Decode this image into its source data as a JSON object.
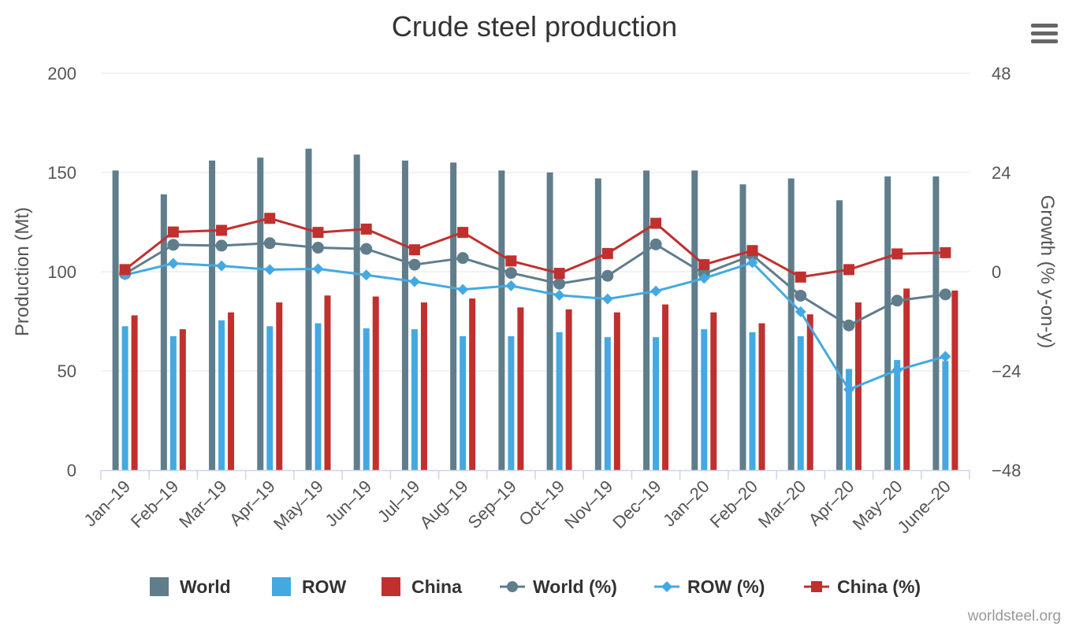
{
  "chart_data": {
    "type": "bar",
    "title": "Crude steel production",
    "categories": [
      "Jan-19",
      "Feb-19",
      "Mar-19",
      "Apr-19",
      "May-19",
      "Jun-19",
      "Jul-19",
      "Aug-19",
      "Sep-19",
      "Oct-19",
      "Nov-19",
      "Dec-19",
      "Jan-20",
      "Feb-20",
      "Mar-20",
      "Apr-20",
      "May-20",
      "June-20"
    ],
    "y_left": {
      "label": "Production (Mt)",
      "ylim": [
        0,
        200
      ],
      "ticks": [
        0,
        50,
        100,
        150,
        200
      ]
    },
    "y_right": {
      "label": "Growth (% y-on-y)",
      "ylim": [
        -48,
        48
      ],
      "ticks": [
        -48,
        -24,
        0,
        24,
        48
      ]
    },
    "series": [
      {
        "name": "World",
        "kind": "bar",
        "axis": "left",
        "color": "#607d8b",
        "values": [
          151,
          139,
          156,
          157.5,
          162,
          159,
          156,
          155,
          151,
          150,
          147,
          151,
          151,
          144,
          147,
          136,
          148,
          148
        ]
      },
      {
        "name": "ROW",
        "kind": "bar",
        "axis": "left",
        "color": "#45a9e1",
        "values": [
          72.5,
          67.5,
          75.5,
          72.5,
          74,
          71.5,
          71,
          67.5,
          67.5,
          69.5,
          67,
          67,
          71,
          69.5,
          67.5,
          51,
          55.5,
          55
        ]
      },
      {
        "name": "China",
        "kind": "bar",
        "axis": "left",
        "color": "#c0302f",
        "values": [
          78,
          71,
          79.5,
          84.5,
          88,
          87.5,
          84.5,
          86.5,
          82,
          81,
          79.5,
          83.5,
          79.5,
          74,
          78.5,
          84.5,
          91.5,
          90.5
        ]
      },
      {
        "name": "World (%)",
        "kind": "line",
        "axis": "right",
        "marker": "circle",
        "color": "#607d8b",
        "values": [
          -0.5,
          6.5,
          6.3,
          6.9,
          5.8,
          5.5,
          1.7,
          3.3,
          -0.3,
          -2.9,
          -1,
          6.6,
          -0.5,
          4,
          -5.8,
          -13,
          -7,
          -5.5
        ]
      },
      {
        "name": "ROW (%)",
        "kind": "line",
        "axis": "right",
        "marker": "diamond",
        "color": "#45a9e1",
        "values": [
          -0.8,
          2,
          1.4,
          0.5,
          0.7,
          -0.8,
          -2.4,
          -4.3,
          -3.4,
          -5.7,
          -6.6,
          -4.7,
          -1.6,
          2.2,
          -9.7,
          -28.5,
          -23.8,
          -20.5
        ]
      },
      {
        "name": "China (%)",
        "kind": "line",
        "axis": "right",
        "marker": "square",
        "color": "#c0302f",
        "values": [
          0.5,
          9.6,
          10,
          12.9,
          9.5,
          10.3,
          5.3,
          9.5,
          2.6,
          -0.4,
          4.4,
          11.7,
          1.7,
          5.1,
          -1.3,
          0.5,
          4.3,
          4.6
        ]
      }
    ],
    "grid": true,
    "legend_position": "bottom"
  },
  "credit": "worldsteel.org",
  "menu_icon": "hamburger-menu-icon"
}
